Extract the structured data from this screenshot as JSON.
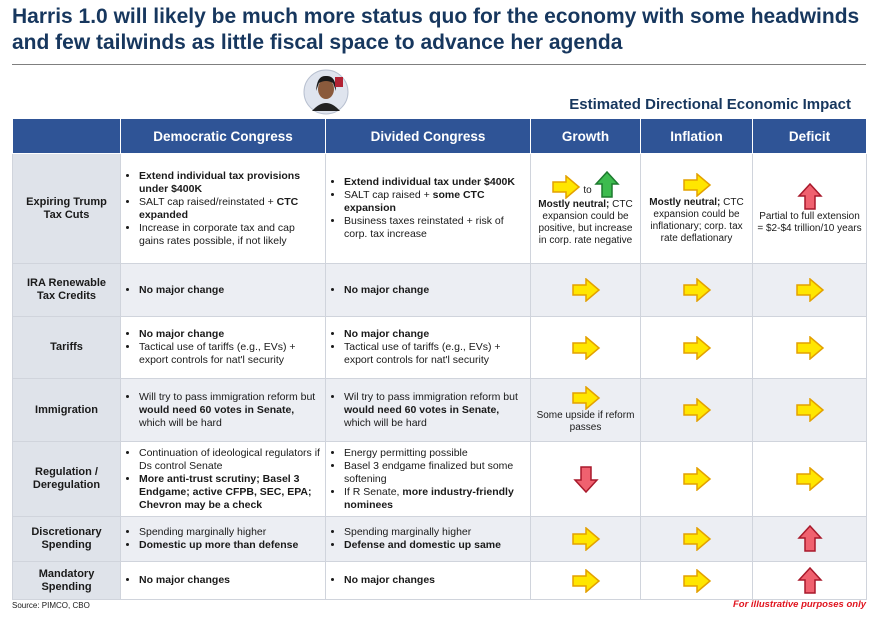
{
  "header": {
    "title": "Harris 1.0 will likely be much more status quo for the economy with some headwinds and few tailwinds as little fiscal space to advance her agenda",
    "subtitle": "Estimated Directional Economic Impact"
  },
  "table": {
    "headers": [
      "Democratic Congress",
      "Divided Congress",
      "Growth",
      "Inflation",
      "Deficit"
    ],
    "rows": [
      {
        "label": "Expiring Trump Tax Cuts",
        "democratic": [
          [
            {
              "text": "Extend individual tax provisions under $400K",
              "bold": true
            }
          ],
          [
            "SALT cap raised/reinstated + ",
            {
              "text": "CTC expanded",
              "bold": true
            }
          ],
          [
            "Increase in corporate tax and cap gains rates possible, if not likely"
          ]
        ],
        "divided": [
          [
            {
              "text": "Extend individual tax under $400K",
              "bold": true
            }
          ],
          [
            "SALT cap raised + ",
            {
              "text": "some CTC expansion",
              "bold": true
            }
          ],
          [
            "Business taxes reinstated + risk of corp. tax increase"
          ]
        ],
        "growth": {
          "arrows": [
            {
              "dir": "right",
              "color": "yellow"
            },
            {
              "dir": "up",
              "color": "green"
            }
          ],
          "connector": "to",
          "text": [
            {
              "text": "Mostly neutral;",
              "bold": true
            },
            " CTC expansion could be positive, but increase in corp. rate negative"
          ]
        },
        "inflation": {
          "arrows": [
            {
              "dir": "right",
              "color": "yellow"
            }
          ],
          "text": [
            {
              "text": "Mostly neutral;",
              "bold": true
            },
            " CTC expansion could be inflationary; corp. tax rate deflationary"
          ]
        },
        "deficit": {
          "arrows": [
            {
              "dir": "up",
              "color": "red"
            }
          ],
          "text": [
            "Partial to full extension = $2-$4 trillion/10 years"
          ]
        }
      },
      {
        "label": "IRA Renewable Tax Credits",
        "democratic": [
          [
            {
              "text": "No major change",
              "bold": true
            }
          ]
        ],
        "divided": [
          [
            {
              "text": "No major change",
              "bold": true
            }
          ]
        ],
        "growth": {
          "arrows": [
            {
              "dir": "right",
              "color": "yellow"
            }
          ]
        },
        "inflation": {
          "arrows": [
            {
              "dir": "right",
              "color": "yellow"
            }
          ]
        },
        "deficit": {
          "arrows": [
            {
              "dir": "right",
              "color": "yellow"
            }
          ]
        }
      },
      {
        "label": "Tariffs",
        "democratic": [
          [
            {
              "text": "No major change",
              "bold": true
            }
          ],
          [
            "Tactical use of tariffs (e.g., EVs) + export controls for nat'l security"
          ]
        ],
        "divided": [
          [
            {
              "text": "No major change",
              "bold": true
            }
          ],
          [
            "Tactical use of tariffs (e.g., EVs) + export controls for nat'l security"
          ]
        ],
        "growth": {
          "arrows": [
            {
              "dir": "right",
              "color": "yellow"
            }
          ]
        },
        "inflation": {
          "arrows": [
            {
              "dir": "right",
              "color": "yellow"
            }
          ]
        },
        "deficit": {
          "arrows": [
            {
              "dir": "right",
              "color": "yellow"
            }
          ]
        }
      },
      {
        "label": "Immigration",
        "democratic": [
          [
            "Will try to pass immigration reform but ",
            {
              "text": "would need 60 votes in Senate,",
              "bold": true
            },
            " which will be hard"
          ]
        ],
        "divided": [
          [
            "Wil try to pass immigration reform but ",
            {
              "text": "would need 60 votes in Senate,",
              "bold": true
            },
            " which will be hard"
          ]
        ],
        "growth": {
          "arrows": [
            {
              "dir": "right",
              "color": "yellow"
            }
          ],
          "text": [
            "Some upside if reform passes"
          ]
        },
        "inflation": {
          "arrows": [
            {
              "dir": "right",
              "color": "yellow"
            }
          ]
        },
        "deficit": {
          "arrows": [
            {
              "dir": "right",
              "color": "yellow"
            }
          ]
        }
      },
      {
        "label": "Regulation / Deregulation",
        "democratic": [
          [
            "Continuation of ideological regulators if Ds control Senate"
          ],
          [
            {
              "text": "More anti-trust scrutiny; Basel 3 Endgame; active CFPB, SEC, EPA; Chevron may be a check",
              "bold": true
            }
          ]
        ],
        "divided": [
          [
            "Energy permitting possible"
          ],
          [
            "Basel 3 endgame finalized but some softening"
          ],
          [
            "If R Senate, ",
            {
              "text": "more industry-friendly nominees",
              "bold": true
            }
          ]
        ],
        "growth": {
          "arrows": [
            {
              "dir": "down",
              "color": "red"
            }
          ]
        },
        "inflation": {
          "arrows": [
            {
              "dir": "right",
              "color": "yellow"
            }
          ]
        },
        "deficit": {
          "arrows": [
            {
              "dir": "right",
              "color": "yellow"
            }
          ]
        }
      },
      {
        "label": "Discretionary Spending",
        "democratic": [
          [
            "Spending marginally higher"
          ],
          [
            {
              "text": "Domestic up more than defense",
              "bold": true
            }
          ]
        ],
        "divided": [
          [
            "Spending marginally higher"
          ],
          [
            {
              "text": "Defense and domestic up same",
              "bold": true
            }
          ]
        ],
        "growth": {
          "arrows": [
            {
              "dir": "right",
              "color": "yellow"
            }
          ]
        },
        "inflation": {
          "arrows": [
            {
              "dir": "right",
              "color": "yellow"
            }
          ]
        },
        "deficit": {
          "arrows": [
            {
              "dir": "up",
              "color": "red"
            }
          ]
        }
      },
      {
        "label": "Mandatory Spending",
        "democratic": [
          [
            {
              "text": "No major changes",
              "bold": true
            }
          ]
        ],
        "divided": [
          [
            {
              "text": "No major changes",
              "bold": true
            }
          ]
        ],
        "growth": {
          "arrows": [
            {
              "dir": "right",
              "color": "yellow"
            }
          ]
        },
        "inflation": {
          "arrows": [
            {
              "dir": "right",
              "color": "yellow"
            }
          ]
        },
        "deficit": {
          "arrows": [
            {
              "dir": "up",
              "color": "red"
            }
          ]
        }
      }
    ]
  },
  "footer": {
    "source": "Source: PIMCO, CBO",
    "note": "For illustrative purposes only"
  }
}
